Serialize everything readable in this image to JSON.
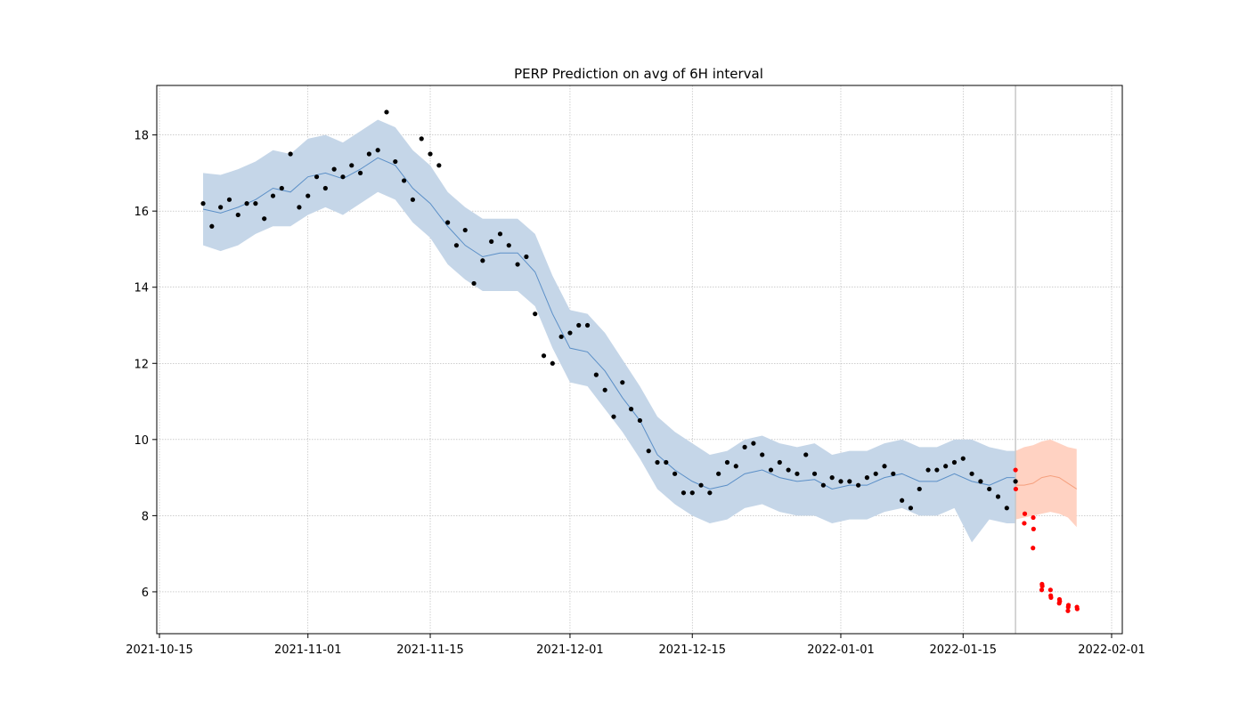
{
  "chart_data": {
    "type": "scatter",
    "title": "PERP Prediction on avg of 6H interval",
    "xlabel": "",
    "ylabel": "",
    "x_range": [
      "2021-10-15",
      "2022-02-01"
    ],
    "y_range": [
      4.9,
      19.3
    ],
    "grid": true,
    "x_ticks": [
      "2021-10-15",
      "2021-11-01",
      "2021-11-15",
      "2021-12-01",
      "2021-12-15",
      "2022-01-01",
      "2022-01-15",
      "2022-02-01"
    ],
    "y_ticks": [
      6,
      8,
      10,
      12,
      14,
      16,
      18
    ],
    "forecast_start": "2022-01-21",
    "colors": {
      "history_points": "#000000",
      "actual_after_split": "#ff0000",
      "history_band": "#c5d6e8",
      "history_line": "#5b8fc7",
      "forecast_band": "#ffd2c2",
      "forecast_line": "#f5a07e",
      "split_line": "#c8c8c8"
    },
    "history_fit": {
      "name": "",
      "x": [
        "2021-10-20",
        "2021-10-22",
        "2021-10-24",
        "2021-10-26",
        "2021-10-28",
        "2021-10-30",
        "2021-11-01",
        "2021-11-03",
        "2021-11-05",
        "2021-11-07",
        "2021-11-09",
        "2021-11-11",
        "2021-11-13",
        "2021-11-15",
        "2021-11-17",
        "2021-11-19",
        "2021-11-21",
        "2021-11-23",
        "2021-11-25",
        "2021-11-27",
        "2021-11-29",
        "2021-12-01",
        "2021-12-03",
        "2021-12-05",
        "2021-12-07",
        "2021-12-09",
        "2021-12-11",
        "2021-12-13",
        "2021-12-15",
        "2021-12-17",
        "2021-12-19",
        "2021-12-21",
        "2021-12-23",
        "2021-12-25",
        "2021-12-27",
        "2021-12-29",
        "2021-12-31",
        "2022-01-02",
        "2022-01-04",
        "2022-01-06",
        "2022-01-08",
        "2022-01-10",
        "2022-01-12",
        "2022-01-14",
        "2022-01-16",
        "2022-01-18",
        "2022-01-20",
        "2022-01-21"
      ],
      "yhat": [
        16.05,
        15.95,
        16.1,
        16.3,
        16.6,
        16.5,
        16.9,
        17.0,
        16.85,
        17.1,
        17.4,
        17.2,
        16.6,
        16.2,
        15.6,
        15.1,
        14.8,
        14.9,
        14.9,
        14.4,
        13.3,
        12.4,
        12.3,
        11.8,
        11.1,
        10.5,
        9.6,
        9.2,
        8.9,
        8.7,
        8.8,
        9.1,
        9.2,
        9.0,
        8.9,
        8.95,
        8.7,
        8.8,
        8.8,
        9.0,
        9.1,
        8.9,
        8.9,
        9.1,
        8.9,
        8.8,
        9.0,
        9.0
      ],
      "lower": [
        15.1,
        14.95,
        15.1,
        15.4,
        15.6,
        15.6,
        15.9,
        16.1,
        15.9,
        16.2,
        16.5,
        16.3,
        15.7,
        15.3,
        14.6,
        14.2,
        13.9,
        13.9,
        13.9,
        13.5,
        12.4,
        11.5,
        11.4,
        10.8,
        10.2,
        9.5,
        8.7,
        8.3,
        8.0,
        7.8,
        7.9,
        8.2,
        8.3,
        8.1,
        8.0,
        8.0,
        7.8,
        7.9,
        7.9,
        8.1,
        8.2,
        8.0,
        8.0,
        8.2,
        7.3,
        7.9,
        7.8,
        7.8
      ],
      "upper": [
        17.0,
        16.95,
        17.1,
        17.3,
        17.6,
        17.5,
        17.9,
        18.0,
        17.8,
        18.1,
        18.4,
        18.2,
        17.6,
        17.2,
        16.5,
        16.1,
        15.8,
        15.8,
        15.8,
        15.4,
        14.3,
        13.4,
        13.3,
        12.8,
        12.1,
        11.4,
        10.6,
        10.2,
        9.9,
        9.6,
        9.7,
        10.0,
        10.1,
        9.9,
        9.8,
        9.9,
        9.6,
        9.7,
        9.7,
        9.9,
        10.0,
        9.8,
        9.8,
        10.0,
        10.0,
        9.8,
        9.7,
        9.7
      ]
    },
    "forecast": {
      "name": "",
      "x": [
        "2022-01-21",
        "2022-01-22",
        "2022-01-23",
        "2022-01-24",
        "2022-01-25",
        "2022-01-26",
        "2022-01-27",
        "2022-01-28"
      ],
      "yhat": [
        8.8,
        8.8,
        8.85,
        9.0,
        9.05,
        9.0,
        8.85,
        8.7
      ],
      "lower": [
        7.9,
        7.95,
        8.0,
        8.05,
        8.1,
        8.05,
        7.95,
        7.7
      ],
      "upper": [
        9.7,
        9.8,
        9.85,
        9.95,
        10.0,
        9.9,
        9.8,
        9.75
      ]
    },
    "observed": {
      "name": "",
      "x": [
        "2021-10-20",
        "2021-10-21",
        "2021-10-22",
        "2021-10-23",
        "2021-10-24",
        "2021-10-25",
        "2021-10-26",
        "2021-10-27",
        "2021-10-28",
        "2021-10-29",
        "2021-10-30",
        "2021-10-31",
        "2021-11-01",
        "2021-11-02",
        "2021-11-03",
        "2021-11-04",
        "2021-11-05",
        "2021-11-06",
        "2021-11-07",
        "2021-11-08",
        "2021-11-09",
        "2021-11-10",
        "2021-11-11",
        "2021-11-12",
        "2021-11-13",
        "2021-11-14",
        "2021-11-15",
        "2021-11-16",
        "2021-11-17",
        "2021-11-18",
        "2021-11-19",
        "2021-11-20",
        "2021-11-21",
        "2021-11-22",
        "2021-11-23",
        "2021-11-24",
        "2021-11-25",
        "2021-11-26",
        "2021-11-27",
        "2021-11-28",
        "2021-11-29",
        "2021-11-30",
        "2021-12-01",
        "2021-12-02",
        "2021-12-03",
        "2021-12-04",
        "2021-12-05",
        "2021-12-06",
        "2021-12-07",
        "2021-12-08",
        "2021-12-09",
        "2021-12-10",
        "2021-12-11",
        "2021-12-12",
        "2021-12-13",
        "2021-12-14",
        "2021-12-15",
        "2021-12-16",
        "2021-12-17",
        "2021-12-18",
        "2021-12-19",
        "2021-12-20",
        "2021-12-21",
        "2021-12-22",
        "2021-12-23",
        "2021-12-24",
        "2021-12-25",
        "2021-12-26",
        "2021-12-27",
        "2021-12-28",
        "2021-12-29",
        "2021-12-30",
        "2021-12-31",
        "2022-01-01",
        "2022-01-02",
        "2022-01-03",
        "2022-01-04",
        "2022-01-05",
        "2022-01-06",
        "2022-01-07",
        "2022-01-08",
        "2022-01-09",
        "2022-01-10",
        "2022-01-11",
        "2022-01-12",
        "2022-01-13",
        "2022-01-14",
        "2022-01-15",
        "2022-01-16",
        "2022-01-17",
        "2022-01-18",
        "2022-01-19",
        "2022-01-20",
        "2022-01-21"
      ],
      "y": [
        16.2,
        15.6,
        16.1,
        16.3,
        15.9,
        16.2,
        16.2,
        15.8,
        16.4,
        16.6,
        17.5,
        16.1,
        16.4,
        16.9,
        16.6,
        17.1,
        16.9,
        17.2,
        17.0,
        17.5,
        17.6,
        18.6,
        17.3,
        16.8,
        16.3,
        17.9,
        17.5,
        17.2,
        15.7,
        15.1,
        15.5,
        14.1,
        14.7,
        15.2,
        15.4,
        15.1,
        14.6,
        14.8,
        13.3,
        12.2,
        12.0,
        12.7,
        12.8,
        13.0,
        13.0,
        11.7,
        11.3,
        10.6,
        11.5,
        10.8,
        10.5,
        9.7,
        9.4,
        9.4,
        9.1,
        8.6,
        8.6,
        8.8,
        8.6,
        9.1,
        9.4,
        9.3,
        9.8,
        9.9,
        9.6,
        9.2,
        9.4,
        9.2,
        9.1,
        9.6,
        9.1,
        8.8,
        9.0,
        8.9,
        8.9,
        8.8,
        9.0,
        9.1,
        9.3,
        9.1,
        8.4,
        8.2,
        8.7,
        9.2,
        9.2,
        9.3,
        9.4,
        9.5,
        9.1,
        8.9,
        8.7,
        8.5,
        8.2,
        8.9
      ],
      "color": "history_points"
    },
    "actual_after_split": {
      "name": "",
      "x": [
        "2022-01-21",
        "2022-01-21",
        "2022-01-22",
        "2022-01-22",
        "2022-01-23",
        "2022-01-23",
        "2022-01-23",
        "2022-01-24",
        "2022-01-24",
        "2022-01-24",
        "2022-01-25",
        "2022-01-25",
        "2022-01-25",
        "2022-01-26",
        "2022-01-26",
        "2022-01-26",
        "2022-01-27",
        "2022-01-27",
        "2022-01-27",
        "2022-01-28",
        "2022-01-28"
      ],
      "y": [
        9.2,
        8.7,
        8.05,
        7.8,
        7.95,
        7.65,
        7.15,
        6.2,
        6.15,
        6.05,
        5.9,
        5.85,
        6.05,
        5.8,
        5.75,
        5.7,
        5.6,
        5.65,
        5.5,
        5.6,
        5.55
      ]
    }
  }
}
